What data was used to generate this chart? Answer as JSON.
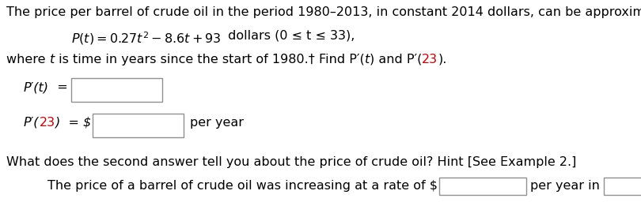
{
  "bg_color": "#ffffff",
  "text_color": "#000000",
  "red_color": "#cc0000",
  "box_edge_color": "#909090",
  "fontsize": 11.5,
  "line1": "The price per barrel of crude oil in the period 1980–2013, in constant 2014 dollars, can be approximated by",
  "line_q": "What does the second answer tell you about the price of crude oil? Hint [See Example 2.]",
  "line_ans": "The price of a barrel of crude oil was increasing at a rate of $",
  "line_ans2": "per year in"
}
